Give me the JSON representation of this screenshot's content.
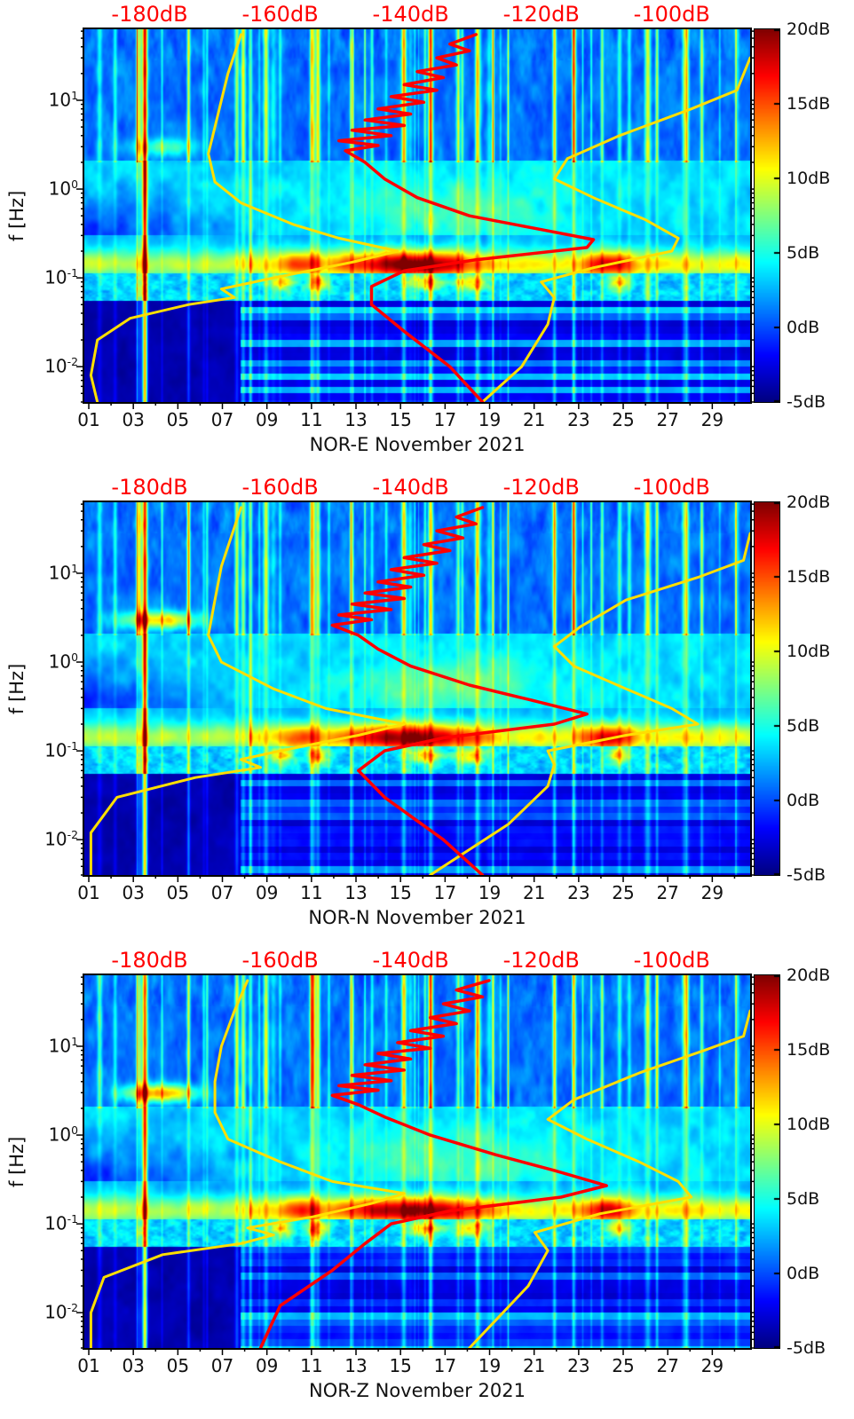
{
  "figure": {
    "background": "#ffffff",
    "top_axis_color": "#ff0000",
    "curve_yellow_color": "#ffdf00",
    "curve_red_color": "#ff0000",
    "panel_count": 3
  },
  "chart_data": [
    {
      "type": "heatmap",
      "title": "",
      "xlabel": "NOR-E November 2021",
      "ylabel": "f [Hz]",
      "x_axis": {
        "tick_labels": [
          "01",
          "03",
          "05",
          "07",
          "09",
          "11",
          "13",
          "15",
          "17",
          "19",
          "21",
          "23",
          "25",
          "27",
          "29"
        ],
        "tick_days": [
          1,
          3,
          5,
          7,
          9,
          11,
          13,
          15,
          17,
          19,
          21,
          23,
          25,
          27,
          29
        ],
        "range_days": [
          0.8,
          30.7
        ]
      },
      "y_axis": {
        "scale": "log",
        "unit": "Hz",
        "tick_exponents": [
          1,
          0,
          -1,
          -2
        ],
        "range_hz": [
          0.004,
          63
        ]
      },
      "top_axis": {
        "unit": "dB",
        "tick_labels": [
          "-180dB",
          "-160dB",
          "-140dB",
          "-120dB",
          "-100dB"
        ],
        "tick_values": [
          -180,
          -160,
          -140,
          -120,
          -100
        ],
        "range_db": [
          -190,
          -88
        ],
        "color": "#ff0000"
      },
      "colorbar": {
        "colormap": "jet",
        "range_db": [
          -5,
          20
        ],
        "tick_labels": [
          "20dB",
          "15dB",
          "10dB",
          "5dB",
          "0dB",
          "-5dB"
        ],
        "tick_values": [
          20,
          15,
          10,
          5,
          0,
          -5
        ]
      },
      "overlays": {
        "yellow_low_percentile_f_db": [
          [
            0.004,
            -188
          ],
          [
            0.008,
            -189
          ],
          [
            0.02,
            -188
          ],
          [
            0.035,
            -183
          ],
          [
            0.05,
            -174
          ],
          [
            0.06,
            -167
          ],
          [
            0.075,
            -169
          ],
          [
            0.1,
            -161
          ],
          [
            0.15,
            -149
          ],
          [
            0.2,
            -142
          ],
          [
            0.28,
            -151
          ],
          [
            0.4,
            -158
          ],
          [
            0.7,
            -166
          ],
          [
            1.2,
            -170
          ],
          [
            2.5,
            -171
          ],
          [
            5,
            -170
          ],
          [
            10,
            -169
          ],
          [
            20,
            -168
          ],
          [
            55,
            -166
          ]
        ],
        "yellow_high_percentile_f_db": [
          [
            0.004,
            -129
          ],
          [
            0.01,
            -123
          ],
          [
            0.03,
            -119
          ],
          [
            0.06,
            -118
          ],
          [
            0.09,
            -120
          ],
          [
            0.13,
            -112
          ],
          [
            0.2,
            -100
          ],
          [
            0.28,
            -99
          ],
          [
            0.45,
            -104
          ],
          [
            0.8,
            -112
          ],
          [
            1.3,
            -118
          ],
          [
            2.2,
            -116
          ],
          [
            4,
            -108
          ],
          [
            8,
            -97
          ],
          [
            13,
            -90
          ],
          [
            30,
            -88
          ]
        ],
        "red_mode_f_db": [
          [
            0.004,
            -129
          ],
          [
            0.01,
            -134
          ],
          [
            0.025,
            -141
          ],
          [
            0.05,
            -146
          ],
          [
            0.08,
            -146
          ],
          [
            0.12,
            -141
          ],
          [
            0.16,
            -130
          ],
          [
            0.22,
            -113
          ],
          [
            0.27,
            -112
          ],
          [
            0.35,
            -120
          ],
          [
            0.5,
            -131
          ],
          [
            0.8,
            -139
          ],
          [
            1.3,
            -144
          ],
          [
            2,
            -147
          ],
          [
            2.7,
            -150
          ],
          [
            3.1,
            -145
          ],
          [
            3.5,
            -151
          ],
          [
            4,
            -143
          ],
          [
            4.6,
            -149
          ],
          [
            5.2,
            -141
          ],
          [
            6,
            -147
          ],
          [
            7,
            -140
          ],
          [
            8,
            -145
          ],
          [
            9.5,
            -138
          ],
          [
            11,
            -143
          ],
          [
            13,
            -136
          ],
          [
            15,
            -141
          ],
          [
            18,
            -135
          ],
          [
            21,
            -139
          ],
          [
            25,
            -133
          ],
          [
            30,
            -136
          ],
          [
            36,
            -131
          ],
          [
            43,
            -134
          ],
          [
            55,
            -130
          ]
        ]
      },
      "texture": {
        "seed": 1,
        "arc_intensity": 5
      }
    },
    {
      "type": "heatmap",
      "title": "",
      "xlabel": "NOR-N November 2021",
      "ylabel": "f [Hz]",
      "x_axis": {
        "tick_labels": [
          "01",
          "03",
          "05",
          "07",
          "09",
          "11",
          "13",
          "15",
          "17",
          "19",
          "21",
          "23",
          "25",
          "27",
          "29"
        ],
        "tick_days": [
          1,
          3,
          5,
          7,
          9,
          11,
          13,
          15,
          17,
          19,
          21,
          23,
          25,
          27,
          29
        ],
        "range_days": [
          0.8,
          30.7
        ]
      },
      "y_axis": {
        "scale": "log",
        "unit": "Hz",
        "tick_exponents": [
          1,
          0,
          -1,
          -2
        ],
        "range_hz": [
          0.004,
          63
        ]
      },
      "top_axis": {
        "unit": "dB",
        "tick_labels": [
          "-180dB",
          "-160dB",
          "-140dB",
          "-120dB",
          "-100dB"
        ],
        "tick_values": [
          -180,
          -160,
          -140,
          -120,
          -100
        ],
        "range_db": [
          -190,
          -88
        ],
        "color": "#ff0000"
      },
      "colorbar": {
        "colormap": "jet",
        "range_db": [
          -5,
          20
        ],
        "tick_labels": [
          "20dB",
          "15dB",
          "10dB",
          "5dB",
          "0dB",
          "-5dB"
        ],
        "tick_values": [
          20,
          15,
          10,
          5,
          0,
          -5
        ]
      },
      "overlays": {
        "yellow_low_percentile_f_db": [
          [
            0.004,
            -189
          ],
          [
            0.012,
            -189
          ],
          [
            0.03,
            -185
          ],
          [
            0.05,
            -173
          ],
          [
            0.065,
            -163
          ],
          [
            0.08,
            -166
          ],
          [
            0.1,
            -160
          ],
          [
            0.15,
            -148
          ],
          [
            0.2,
            -141
          ],
          [
            0.3,
            -153
          ],
          [
            0.5,
            -161
          ],
          [
            1,
            -169
          ],
          [
            2,
            -171
          ],
          [
            5,
            -170
          ],
          [
            12,
            -169
          ],
          [
            55,
            -166
          ]
        ],
        "yellow_high_percentile_f_db": [
          [
            0.004,
            -137
          ],
          [
            0.015,
            -125
          ],
          [
            0.04,
            -119
          ],
          [
            0.07,
            -118
          ],
          [
            0.1,
            -119
          ],
          [
            0.15,
            -107
          ],
          [
            0.2,
            -96
          ],
          [
            0.3,
            -100
          ],
          [
            0.5,
            -107
          ],
          [
            0.9,
            -115
          ],
          [
            1.5,
            -118
          ],
          [
            2.5,
            -114
          ],
          [
            5,
            -107
          ],
          [
            9,
            -96
          ],
          [
            14,
            -89
          ],
          [
            28,
            -88
          ]
        ],
        "red_mode_f_db": [
          [
            0.004,
            -129
          ],
          [
            0.01,
            -135
          ],
          [
            0.03,
            -144
          ],
          [
            0.06,
            -148
          ],
          [
            0.1,
            -144
          ],
          [
            0.14,
            -135
          ],
          [
            0.2,
            -118
          ],
          [
            0.26,
            -113
          ],
          [
            0.38,
            -122
          ],
          [
            0.55,
            -131
          ],
          [
            0.9,
            -140
          ],
          [
            1.4,
            -145
          ],
          [
            2,
            -148
          ],
          [
            2.6,
            -152
          ],
          [
            3,
            -146
          ],
          [
            3.4,
            -151
          ],
          [
            3.9,
            -143
          ],
          [
            4.5,
            -149
          ],
          [
            5.2,
            -141
          ],
          [
            6,
            -147
          ],
          [
            7,
            -140
          ],
          [
            8,
            -145
          ],
          [
            9.5,
            -138
          ],
          [
            11,
            -143
          ],
          [
            13,
            -136
          ],
          [
            15,
            -141
          ],
          [
            18,
            -134
          ],
          [
            21,
            -138
          ],
          [
            25,
            -132
          ],
          [
            30,
            -136
          ],
          [
            36,
            -130
          ],
          [
            43,
            -133
          ],
          [
            55,
            -129
          ]
        ]
      },
      "texture": {
        "seed": 2,
        "arc_intensity": 11
      }
    },
    {
      "type": "heatmap",
      "title": "",
      "xlabel": "NOR-Z November 2021",
      "ylabel": "f [Hz]",
      "x_axis": {
        "tick_labels": [
          "01",
          "03",
          "05",
          "07",
          "09",
          "11",
          "13",
          "15",
          "17",
          "19",
          "21",
          "23",
          "25",
          "27",
          "29"
        ],
        "tick_days": [
          1,
          3,
          5,
          7,
          9,
          11,
          13,
          15,
          17,
          19,
          21,
          23,
          25,
          27,
          29
        ],
        "range_days": [
          0.8,
          30.7
        ]
      },
      "y_axis": {
        "scale": "log",
        "unit": "Hz",
        "tick_exponents": [
          1,
          0,
          -1,
          -2
        ],
        "range_hz": [
          0.004,
          63
        ]
      },
      "top_axis": {
        "unit": "dB",
        "tick_labels": [
          "-180dB",
          "-160dB",
          "-140dB",
          "-120dB",
          "-100dB"
        ],
        "tick_values": [
          -180,
          -160,
          -140,
          -120,
          -100
        ],
        "range_db": [
          -190,
          -88
        ],
        "color": "#ff0000"
      },
      "colorbar": {
        "colormap": "jet",
        "range_db": [
          -5,
          20
        ],
        "tick_labels": [
          "20dB",
          "15dB",
          "10dB",
          "5dB",
          "0dB",
          "-5dB"
        ],
        "tick_values": [
          20,
          15,
          10,
          5,
          0,
          -5
        ]
      },
      "overlays": {
        "yellow_low_percentile_f_db": [
          [
            0.004,
            -189
          ],
          [
            0.01,
            -189
          ],
          [
            0.025,
            -187
          ],
          [
            0.045,
            -178
          ],
          [
            0.06,
            -166
          ],
          [
            0.075,
            -161
          ],
          [
            0.09,
            -165
          ],
          [
            0.12,
            -155
          ],
          [
            0.17,
            -146
          ],
          [
            0.22,
            -141
          ],
          [
            0.3,
            -152
          ],
          [
            0.5,
            -160
          ],
          [
            0.9,
            -168
          ],
          [
            1.8,
            -170
          ],
          [
            4,
            -170
          ],
          [
            10,
            -169
          ],
          [
            25,
            -167
          ],
          [
            55,
            -165
          ]
        ],
        "yellow_high_percentile_f_db": [
          [
            0.004,
            -131
          ],
          [
            0.02,
            -122
          ],
          [
            0.05,
            -119
          ],
          [
            0.08,
            -121
          ],
          [
            0.13,
            -111
          ],
          [
            0.2,
            -97
          ],
          [
            0.3,
            -99
          ],
          [
            0.5,
            -105
          ],
          [
            0.9,
            -113
          ],
          [
            1.5,
            -119
          ],
          [
            2.5,
            -115
          ],
          [
            5,
            -105
          ],
          [
            9,
            -95
          ],
          [
            13,
            -89
          ],
          [
            25,
            -88
          ]
        ],
        "red_mode_f_db": [
          [
            0.004,
            -163
          ],
          [
            0.012,
            -160
          ],
          [
            0.03,
            -152
          ],
          [
            0.06,
            -147
          ],
          [
            0.1,
            -143
          ],
          [
            0.14,
            -134
          ],
          [
            0.2,
            -117
          ],
          [
            0.27,
            -110
          ],
          [
            0.4,
            -118
          ],
          [
            0.6,
            -127
          ],
          [
            1,
            -137
          ],
          [
            1.6,
            -144
          ],
          [
            2.2,
            -148
          ],
          [
            2.8,
            -152
          ],
          [
            3.2,
            -145
          ],
          [
            3.6,
            -151
          ],
          [
            4.1,
            -143
          ],
          [
            4.7,
            -149
          ],
          [
            5.4,
            -141
          ],
          [
            6.2,
            -147
          ],
          [
            7.2,
            -140
          ],
          [
            8.3,
            -145
          ],
          [
            9.5,
            -137
          ],
          [
            11,
            -142
          ],
          [
            13,
            -135
          ],
          [
            15,
            -140
          ],
          [
            18,
            -133
          ],
          [
            21,
            -137
          ],
          [
            25,
            -131
          ],
          [
            30,
            -135
          ],
          [
            36,
            -129
          ],
          [
            43,
            -133
          ],
          [
            55,
            -128
          ]
        ]
      },
      "texture": {
        "seed": 3,
        "arc_intensity": 12
      }
    }
  ]
}
